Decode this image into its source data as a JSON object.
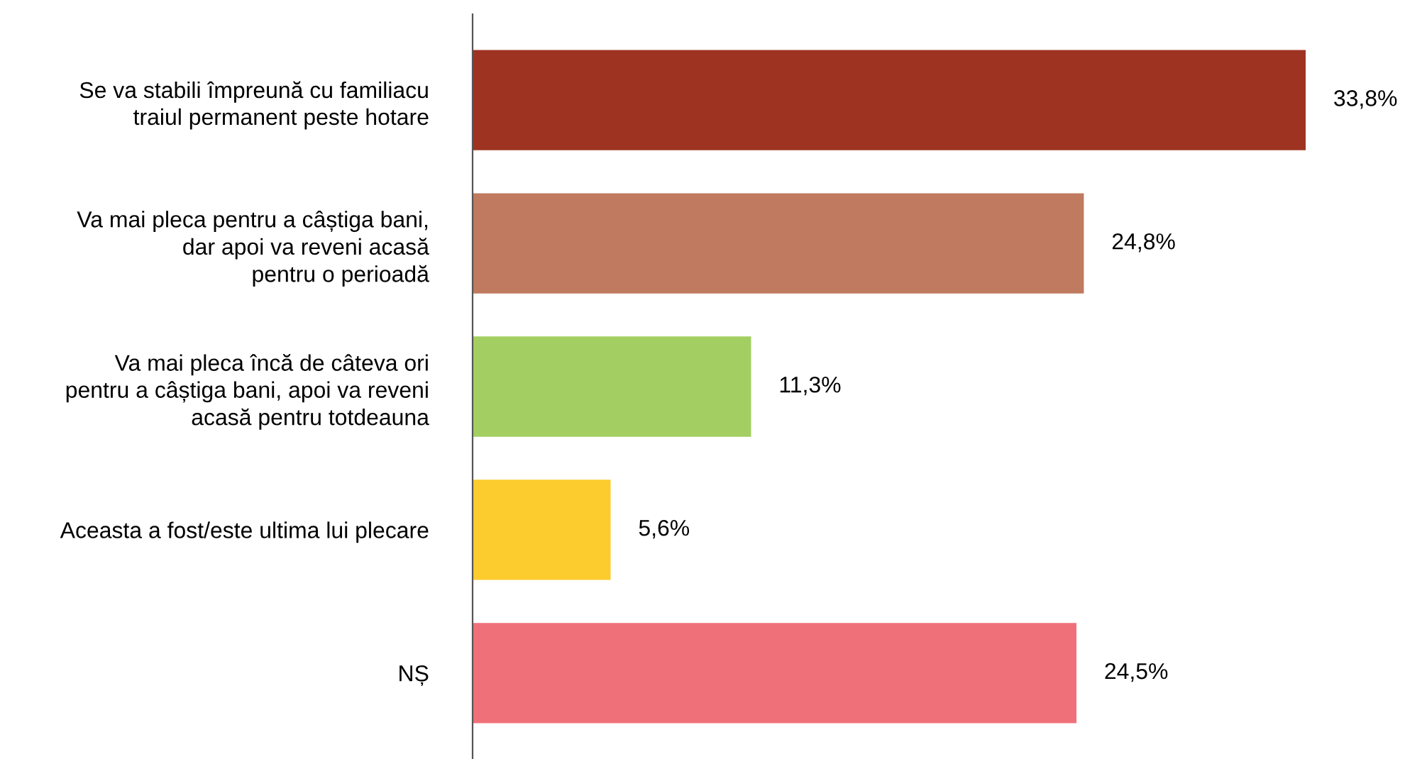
{
  "chart_data": {
    "type": "bar",
    "orientation": "horizontal",
    "categories": [
      "Se va stabili împreună cu familiacu\ntraiul permanent peste hotare",
      "Va mai pleca pentru a câștiga bani,\ndar apoi va reveni acasă\npentru o perioadă",
      "Va mai pleca încă de câteva ori\npentru a câștiga bani, apoi va reveni\nacasă pentru totdeauna",
      "Aceasta a fost/este ultima lui plecare",
      "NȘ"
    ],
    "values": [
      33.8,
      24.8,
      11.3,
      5.6,
      24.5
    ],
    "colors": [
      "#9e3322",
      "#c07a5f",
      "#a3cf62",
      "#fccb2e",
      "#f0707a"
    ],
    "value_labels": [
      "33,8%",
      "24,8%",
      "11,3%",
      "5,6%",
      "24,5%"
    ],
    "grid": false,
    "legend": false
  }
}
